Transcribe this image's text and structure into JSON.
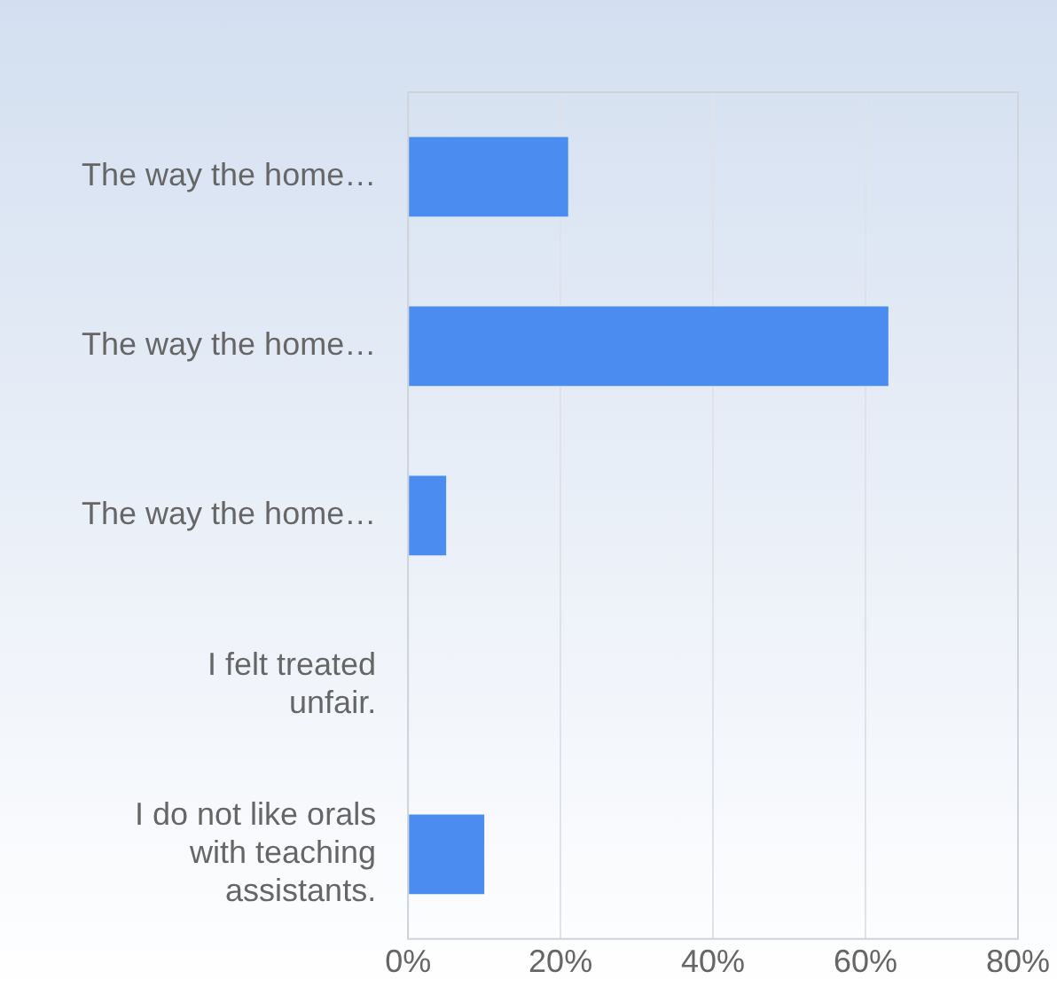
{
  "chart_data": {
    "type": "bar",
    "orientation": "horizontal",
    "categories": [
      "The way the home…",
      "The way the home…",
      "The way the home…",
      "I felt treated unfair.",
      "I do not like orals with teaching assistants."
    ],
    "values": [
      21,
      63,
      5,
      0,
      10
    ],
    "color": "#4a8cf0",
    "xlim": [
      0,
      80
    ],
    "xticks": [
      {
        "value": 0,
        "label": "0%"
      },
      {
        "value": 20,
        "label": "20%"
      },
      {
        "value": 40,
        "label": "40%"
      },
      {
        "value": 60,
        "label": "60%"
      },
      {
        "value": 80,
        "label": "80%"
      }
    ],
    "grid": "x",
    "legend": false
  }
}
